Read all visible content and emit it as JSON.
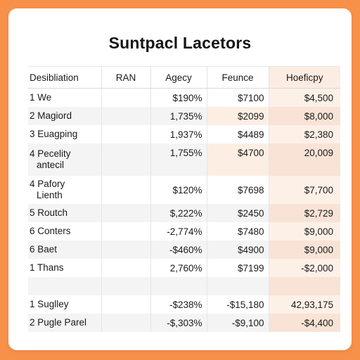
{
  "title": "Suntpacl Lacetors",
  "columns": [
    "Desibliation",
    "RAN",
    "Agecy",
    "Feunce",
    "Hoeficpy"
  ],
  "rows": [
    {
      "label": "1 We",
      "c1": "",
      "c2": "$190%",
      "c3": "$7100",
      "c4": "$4,500"
    },
    {
      "label": "2 Magiord",
      "c1": "",
      "c2": "1,735%",
      "c3": "$2099",
      "c4": "$8,000"
    },
    {
      "label": "3 Euagping",
      "c1": "",
      "c2": "1,937%",
      "c3": "$4489",
      "c4": "$2,380"
    },
    {
      "label": "4 Pecelity",
      "label2": "antecil",
      "c1": "",
      "c2": "1,755%",
      "c3": "$4700",
      "c4": "20,009"
    },
    {
      "label": "4 Pafory",
      "label2": "Lienth",
      "c1": "",
      "c2": "$120%",
      "c3": "$7698",
      "c4": "$7,700"
    },
    {
      "label": "5 Routch",
      "c1": "",
      "c2": "$,222%",
      "c3": "$2450",
      "c4": "$2,729"
    },
    {
      "label": "6 Conters",
      "c1": "",
      "c2": "-2,774%",
      "c3": "$7480",
      "c4": "$9,000"
    },
    {
      "label": "6 Baet",
      "c1": "",
      "c2": "-$460%",
      "c3": "$4900",
      "c4": "$9,000"
    },
    {
      "label": "1 Thans",
      "c1": "",
      "c2": "2,760%",
      "c3": "$7199",
      "c4": "-$2,000"
    },
    {
      "label": "",
      "c1": "",
      "c2": "",
      "c3": "",
      "c4": ""
    },
    {
      "label": "1 Suglley",
      "c1": "",
      "c2": "-$238%",
      "c3": "-$15,180",
      "c4": "42,93,175"
    },
    {
      "label": "2 Pugle Parel",
      "c1": "",
      "c2": "-$,303%",
      "c3": "-$9,100",
      "c4": "-$4,400"
    }
  ]
}
